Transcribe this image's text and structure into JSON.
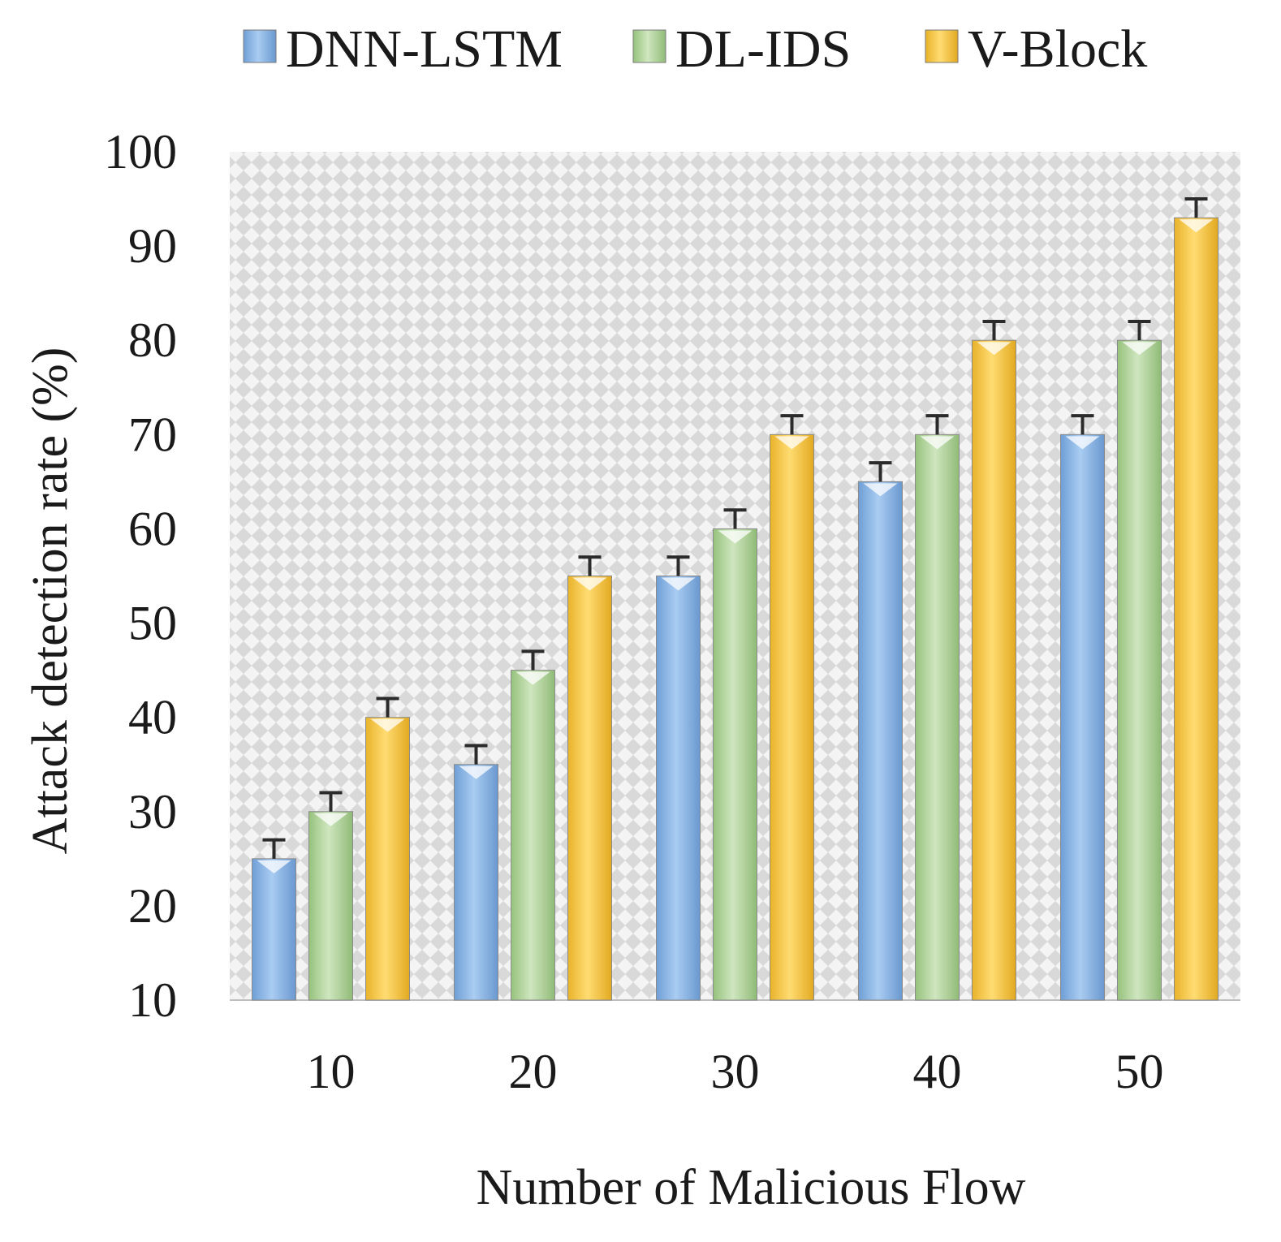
{
  "chart_data": {
    "type": "bar",
    "title": "",
    "xlabel": "Number of Malicious Flow",
    "ylabel": "Attack detection rate (%)",
    "categories": [
      "10",
      "20",
      "30",
      "40",
      "50"
    ],
    "ylim": [
      10,
      100
    ],
    "yticks": [
      "10",
      "20",
      "30",
      "40",
      "50",
      "60",
      "70",
      "80",
      "90",
      "100"
    ],
    "error_bars": true,
    "legend_position": "top",
    "background": "patterned-grey",
    "series": [
      {
        "name": "DNN-LSTM",
        "color": "#8fb8e6",
        "values": [
          25,
          35,
          55,
          65,
          70
        ],
        "errors": [
          2,
          2,
          2,
          2,
          2
        ]
      },
      {
        "name": "DL-IDS",
        "color": "#b6d7a0",
        "values": [
          30,
          45,
          60,
          70,
          80
        ],
        "errors": [
          2,
          2,
          2,
          2,
          2
        ]
      },
      {
        "name": "V-Block",
        "color": "#f5c842",
        "values": [
          40,
          55,
          70,
          80,
          93
        ],
        "errors": [
          2,
          2,
          2,
          2,
          2
        ]
      }
    ]
  }
}
